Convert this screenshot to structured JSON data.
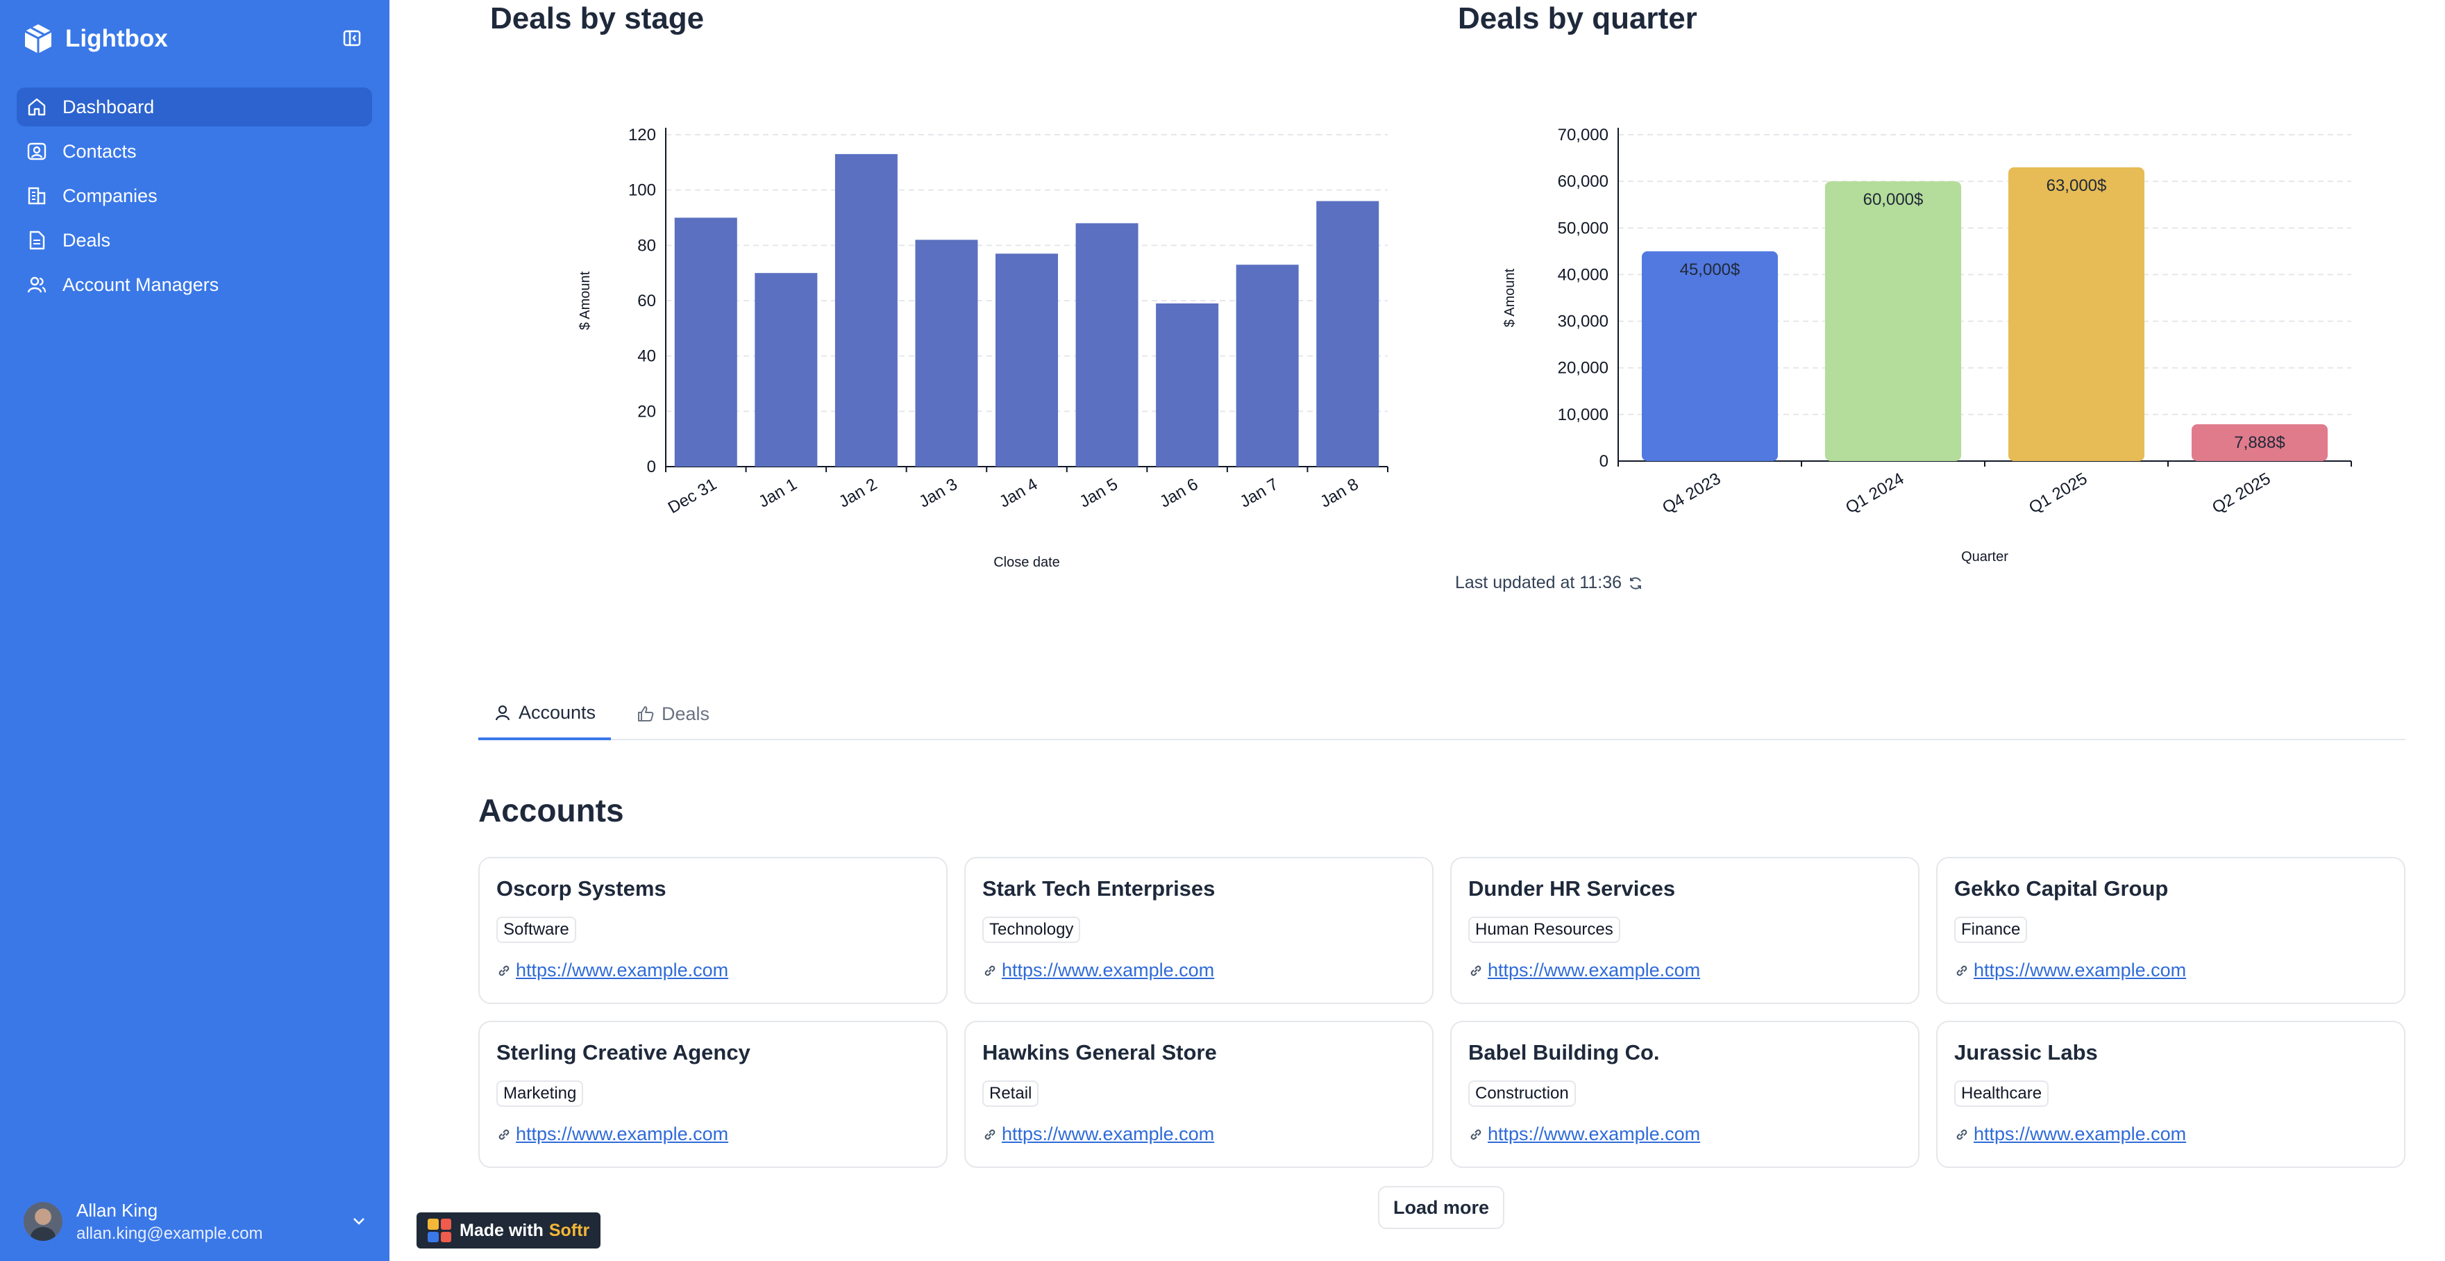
{
  "app": {
    "name": "Lightbox",
    "accent": "#3a78e8"
  },
  "sidebar": {
    "items": [
      {
        "label": "Dashboard",
        "icon": "home-icon",
        "active": true
      },
      {
        "label": "Contacts",
        "icon": "contact-icon",
        "active": false
      },
      {
        "label": "Companies",
        "icon": "building-icon",
        "active": false
      },
      {
        "label": "Deals",
        "icon": "document-icon",
        "active": false
      },
      {
        "label": "Account Managers",
        "icon": "users-icon",
        "active": false
      }
    ],
    "user": {
      "name": "Allan King",
      "email": "allan.king@example.com"
    }
  },
  "charts": {
    "stage": {
      "title": "Deals by stage"
    },
    "quarter": {
      "title": "Deals by quarter",
      "updated": "Last updated at 11:36"
    }
  },
  "chart_data": [
    {
      "type": "bar",
      "title": "Deals by stage",
      "xlabel": "Close date",
      "ylabel": "$ Amount",
      "categories": [
        "Dec 31",
        "Jan 1",
        "Jan 2",
        "Jan 3",
        "Jan 4",
        "Jan 5",
        "Jan 6",
        "Jan 7",
        "Jan 8"
      ],
      "values": [
        90,
        70,
        113,
        82,
        77,
        88,
        59,
        73,
        96
      ],
      "ylim": [
        0,
        120
      ],
      "yticks": [
        0,
        20,
        40,
        60,
        80,
        100,
        120
      ],
      "color": "#5b70c0",
      "grid": true
    },
    {
      "type": "bar",
      "title": "Deals by quarter",
      "xlabel": "Quarter",
      "ylabel": "$ Amount",
      "categories": [
        "Q4 2023",
        "Q1 2024",
        "Q1 2025",
        "Q2 2025"
      ],
      "values": [
        45000,
        60000,
        63000,
        7888
      ],
      "data_labels": [
        "45,000$",
        "60,000$",
        "63,000$",
        "7,888$"
      ],
      "colors": [
        "#5279e0",
        "#b4dc9a",
        "#e7bb55",
        "#e07b8c"
      ],
      "ylim": [
        0,
        70000
      ],
      "yticks": [
        0,
        10000,
        20000,
        30000,
        40000,
        50000,
        60000,
        70000
      ],
      "ytick_labels": [
        "0",
        "10,000",
        "20,000",
        "30,000",
        "40,000",
        "50,000",
        "60,000",
        "70,000"
      ],
      "grid": true
    }
  ],
  "tabs": [
    {
      "label": "Accounts",
      "icon": "user-icon",
      "active": true
    },
    {
      "label": "Deals",
      "icon": "thumbs-up-icon",
      "active": false
    }
  ],
  "accounts": {
    "title": "Accounts",
    "cards": [
      {
        "name": "Oscorp Systems",
        "industry": "Software",
        "url": "https://www.example.com"
      },
      {
        "name": "Stark Tech Enterprises",
        "industry": "Technology",
        "url": "https://www.example.com"
      },
      {
        "name": "Dunder HR Services",
        "industry": "Human Resources",
        "url": "https://www.example.com"
      },
      {
        "name": "Gekko Capital Group",
        "industry": "Finance",
        "url": "https://www.example.com"
      },
      {
        "name": "Sterling Creative Agency",
        "industry": "Marketing",
        "url": "https://www.example.com"
      },
      {
        "name": "Hawkins General Store",
        "industry": "Retail",
        "url": "https://www.example.com"
      },
      {
        "name": "Babel Building Co.",
        "industry": "Construction",
        "url": "https://www.example.com"
      },
      {
        "name": "Jurassic Labs",
        "industry": "Healthcare",
        "url": "https://www.example.com"
      }
    ],
    "load_more": "Load more"
  },
  "badge": {
    "text": "Made with",
    "brand": "Softr"
  }
}
